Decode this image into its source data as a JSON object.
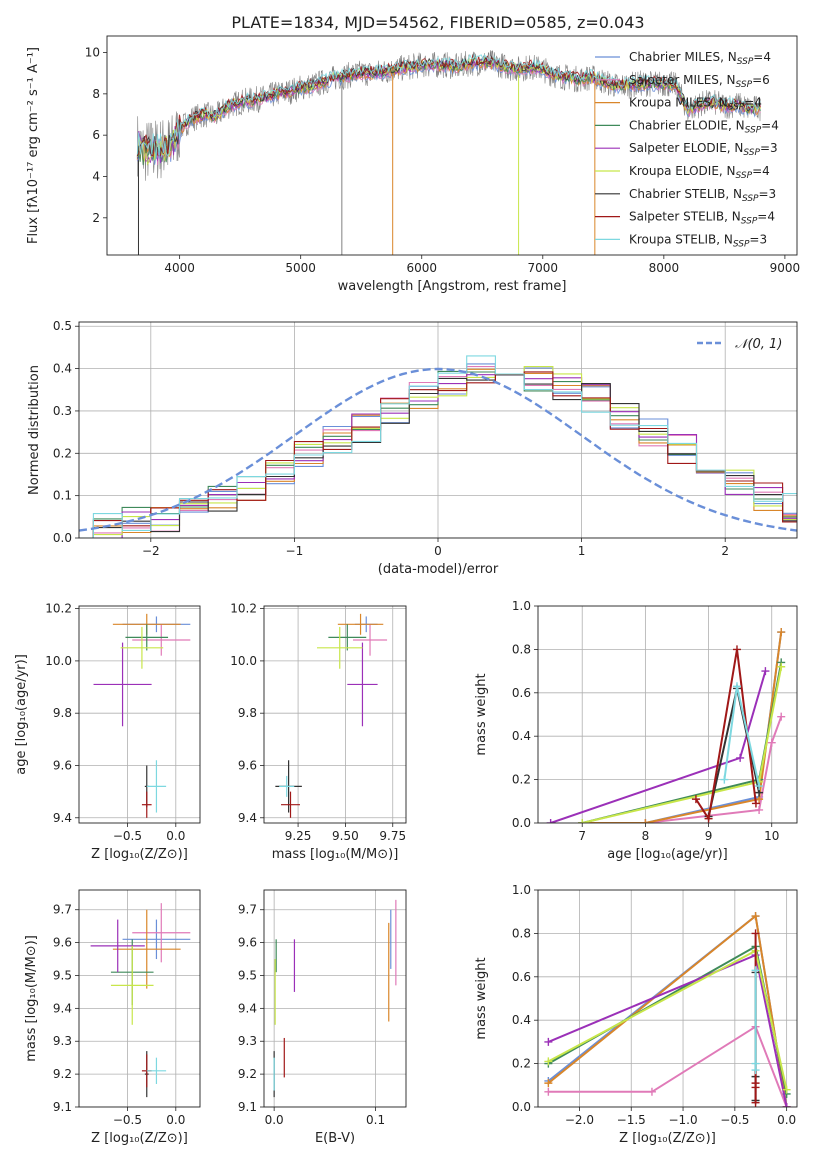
{
  "figure_title": "PLATE=1834, MJD=54562, FIBERID=0585, z=0.043",
  "colors": {
    "Chabrier MILES": "#6a8fd8",
    "Salpeter MILES": "#e07ab8",
    "Kroupa MILES": "#d9862a",
    "Chabrier ELODIE": "#3f8a5a",
    "Salpeter ELODIE": "#9b30b8",
    "Kroupa ELODIE": "#c8e64a",
    "Chabrier STELIB": "#333333",
    "Salpeter STELIB": "#a01818",
    "Kroupa STELIB": "#7dd8e0",
    "data": "#808080",
    "normal": "#6a8fd8"
  },
  "chart_data": [
    {
      "type": "line",
      "title": "PLATE=1834, MJD=54562, FIBERID=0585, z=0.043",
      "xlabel": "wavelength [Angstrom, rest frame]",
      "ylabel": "Flux [fλ10⁻¹⁷ erg cm⁻² s⁻¹ A⁻¹]",
      "xlim": [
        3400,
        9100
      ],
      "ylim": [
        0.2,
        10.8
      ],
      "xticks": [
        4000,
        5000,
        6000,
        7000,
        8000,
        9000
      ],
      "yticks": [
        2,
        4,
        6,
        8,
        10
      ],
      "legend_position": "top-right",
      "legend": [
        {
          "main": "Chabrier MILES, N",
          "sub": "SSP",
          "tail": "=4"
        },
        {
          "main": "Salpeter MILES, N",
          "sub": "SSP",
          "tail": "=6"
        },
        {
          "main": "Kroupa MILES, N",
          "sub": "SSP",
          "tail": "=4"
        },
        {
          "main": "Chabrier ELODIE, N",
          "sub": "SSP",
          "tail": "=4"
        },
        {
          "main": "Salpeter ELODIE, N",
          "sub": "SSP",
          "tail": "=3"
        },
        {
          "main": "Kroupa ELODIE, N",
          "sub": "SSP",
          "tail": "=4"
        },
        {
          "main": "Chabrier STELIB, N",
          "sub": "SSP",
          "tail": "=3"
        },
        {
          "main": "Salpeter STELIB, N",
          "sub": "SSP",
          "tail": "=4"
        },
        {
          "main": "Kroupa STELIB, N",
          "sub": "SSP",
          "tail": "=3"
        }
      ],
      "continuum": [
        [
          3650,
          5.6
        ],
        [
          3700,
          5.2
        ],
        [
          3800,
          5.3
        ],
        [
          3900,
          5.4
        ],
        [
          3950,
          5.6
        ],
        [
          4000,
          6.3
        ],
        [
          4100,
          6.8
        ],
        [
          4200,
          7.0
        ],
        [
          4300,
          6.9
        ],
        [
          4400,
          7.4
        ],
        [
          4500,
          7.6
        ],
        [
          4600,
          7.7
        ],
        [
          4700,
          7.8
        ],
        [
          4800,
          8.0
        ],
        [
          4900,
          8.1
        ],
        [
          5000,
          8.3
        ],
        [
          5100,
          8.4
        ],
        [
          5200,
          8.6
        ],
        [
          5300,
          8.8
        ],
        [
          5400,
          8.9
        ],
        [
          5500,
          9.0
        ],
        [
          5600,
          9.0
        ],
        [
          5700,
          9.1
        ],
        [
          5800,
          9.2
        ],
        [
          5900,
          9.3
        ],
        [
          6000,
          9.4
        ],
        [
          6100,
          9.4
        ],
        [
          6200,
          9.4
        ],
        [
          6300,
          9.3
        ],
        [
          6400,
          9.5
        ],
        [
          6500,
          9.5
        ],
        [
          6600,
          9.5
        ],
        [
          6700,
          9.3
        ],
        [
          6800,
          9.2
        ],
        [
          6900,
          9.3
        ],
        [
          7000,
          9.2
        ],
        [
          7100,
          8.9
        ],
        [
          7200,
          8.8
        ],
        [
          7300,
          8.7
        ],
        [
          7400,
          8.8
        ],
        [
          7500,
          8.6
        ],
        [
          7600,
          8.4
        ],
        [
          7700,
          8.4
        ],
        [
          7800,
          8.5
        ],
        [
          7900,
          8.5
        ],
        [
          8000,
          8.5
        ],
        [
          8100,
          8.4
        ],
        [
          8200,
          7.2
        ],
        [
          8300,
          7.5
        ],
        [
          8400,
          7.6
        ],
        [
          8500,
          7.4
        ],
        [
          8600,
          7.5
        ],
        [
          8700,
          7.3
        ],
        [
          8800,
          7.3
        ]
      ]
    },
    {
      "type": "line",
      "xlabel": "(data-model)/error",
      "ylabel": "Normed distribution",
      "xlim": [
        -2.5,
        2.5
      ],
      "ylim": [
        0,
        0.51
      ],
      "xticks": [
        -2,
        -1,
        0,
        1,
        2
      ],
      "yticks": [
        0.0,
        0.1,
        0.2,
        0.3,
        0.4,
        0.5
      ],
      "grid": true,
      "legend_position": "top-right",
      "legend_label": "𝒩(0, 1)",
      "bin_width": 0.2,
      "bin_start": -2.6,
      "histogram_heights": [
        0.02,
        0.025,
        0.04,
        0.05,
        0.06,
        0.09,
        0.12,
        0.16,
        0.2,
        0.23,
        0.26,
        0.3,
        0.34,
        0.37,
        0.4,
        0.39,
        0.38,
        0.36,
        0.33,
        0.29,
        0.25,
        0.21,
        0.17,
        0.13,
        0.1,
        0.07,
        0.05,
        0.04
      ]
    },
    {
      "type": "scatter",
      "xlabel": "Z [log₁₀(Z/Z⊙)]",
      "ylabel": "age  [log₁₀(age/yr)]",
      "xlim": [
        -1.0,
        0.25
      ],
      "ylim": [
        9.38,
        10.21
      ],
      "xticks": [
        -0.5,
        0.0
      ],
      "yticks": [
        9.4,
        9.6,
        9.8,
        10.0,
        10.2
      ],
      "grid": true,
      "points": [
        {
          "model": "Chabrier MILES",
          "x": -0.2,
          "y": 10.14,
          "xerr": 0.35,
          "yerr": 0.03
        },
        {
          "model": "Salpeter MILES",
          "x": -0.15,
          "y": 10.08,
          "xerr": 0.3,
          "yerr": 0.06
        },
        {
          "model": "Kroupa MILES",
          "x": -0.3,
          "y": 10.14,
          "xerr": 0.35,
          "yerr": 0.04
        },
        {
          "model": "Chabrier ELODIE",
          "x": -0.3,
          "y": 10.09,
          "xerr": 0.22,
          "yerr": 0.05
        },
        {
          "model": "Salpeter ELODIE",
          "x": -0.55,
          "y": 9.91,
          "xerr": 0.3,
          "yerr": 0.16
        },
        {
          "model": "Kroupa ELODIE",
          "x": -0.35,
          "y": 10.05,
          "xerr": 0.22,
          "yerr": 0.08
        },
        {
          "model": "Chabrier STELIB",
          "x": -0.3,
          "y": 9.52,
          "xerr": 0.02,
          "yerr": 0.08
        },
        {
          "model": "Salpeter STELIB",
          "x": -0.3,
          "y": 9.45,
          "xerr": 0.05,
          "yerr": 0.05
        },
        {
          "model": "Kroupa STELIB",
          "x": -0.2,
          "y": 9.52,
          "xerr": 0.1,
          "yerr": 0.1
        }
      ]
    },
    {
      "type": "scatter",
      "xlabel": "mass [log₁₀(M/M⊙)]",
      "xlim": [
        9.07,
        9.82
      ],
      "ylim": [
        9.38,
        10.21
      ],
      "xticks": [
        9.25,
        9.5,
        9.75
      ],
      "yticks": [
        9.4,
        9.6,
        9.8,
        10.0,
        10.2
      ],
      "grid": true,
      "points": [
        {
          "model": "Chabrier MILES",
          "x": 9.61,
          "y": 10.14,
          "xerr": 0.06,
          "yerr": 0.03
        },
        {
          "model": "Salpeter MILES",
          "x": 9.63,
          "y": 10.08,
          "xerr": 0.09,
          "yerr": 0.06
        },
        {
          "model": "Kroupa MILES",
          "x": 9.58,
          "y": 10.14,
          "xerr": 0.12,
          "yerr": 0.04
        },
        {
          "model": "Chabrier ELODIE",
          "x": 9.51,
          "y": 10.09,
          "xerr": 0.1,
          "yerr": 0.05
        },
        {
          "model": "Salpeter ELODIE",
          "x": 9.59,
          "y": 9.91,
          "xerr": 0.08,
          "yerr": 0.16
        },
        {
          "model": "Kroupa ELODIE",
          "x": 9.47,
          "y": 10.05,
          "xerr": 0.12,
          "yerr": 0.08
        },
        {
          "model": "Chabrier STELIB",
          "x": 9.2,
          "y": 9.52,
          "xerr": 0.07,
          "yerr": 0.1
        },
        {
          "model": "Salpeter STELIB",
          "x": 9.21,
          "y": 9.45,
          "xerr": 0.05,
          "yerr": 0.05
        },
        {
          "model": "Kroupa STELIB",
          "x": 9.19,
          "y": 9.52,
          "xerr": 0.04,
          "yerr": 0.04
        }
      ]
    },
    {
      "type": "line",
      "xlabel": "age  [log₁₀(age/yr)]",
      "ylabel": "mass weight",
      "xlim": [
        6.3,
        10.4
      ],
      "ylim": [
        0,
        1.0
      ],
      "xticks": [
        7,
        8,
        9,
        10
      ],
      "yticks": [
        0.0,
        0.2,
        0.4,
        0.6,
        0.8,
        1.0
      ],
      "grid": true,
      "series": [
        {
          "model": "Chabrier MILES",
          "x": [
            7.0,
            8.0,
            9.8,
            10.15
          ],
          "y": [
            0.0,
            0.0,
            0.12,
            0.88
          ]
        },
        {
          "model": "Salpeter MILES",
          "x": [
            7.0,
            8.0,
            9.8,
            10.0,
            10.15
          ],
          "y": [
            0.0,
            0.0,
            0.06,
            0.37,
            0.49
          ]
        },
        {
          "model": "Kroupa MILES",
          "x": [
            7.0,
            8.0,
            9.8,
            10.15
          ],
          "y": [
            0.0,
            0.0,
            0.11,
            0.88
          ]
        },
        {
          "model": "Chabrier ELODIE",
          "x": [
            7.0,
            9.8,
            10.15
          ],
          "y": [
            0.0,
            0.2,
            0.74
          ]
        },
        {
          "model": "Salpeter ELODIE",
          "x": [
            6.5,
            9.5,
            9.9
          ],
          "y": [
            0.0,
            0.3,
            0.7
          ]
        },
        {
          "model": "Kroupa ELODIE",
          "x": [
            7.0,
            9.8,
            10.15
          ],
          "y": [
            0.0,
            0.19,
            0.72
          ]
        },
        {
          "model": "Chabrier STELIB",
          "x": [
            9.0,
            9.45,
            9.8
          ],
          "y": [
            0.03,
            0.62,
            0.14
          ]
        },
        {
          "model": "Salpeter STELIB",
          "x": [
            8.8,
            9.0,
            9.45,
            9.75
          ],
          "y": [
            0.11,
            0.02,
            0.8,
            0.09
          ]
        },
        {
          "model": "Kroupa STELIB",
          "x": [
            9.25,
            9.45,
            9.8
          ],
          "y": [
            0.2,
            0.63,
            0.17
          ]
        }
      ]
    },
    {
      "type": "scatter",
      "xlabel": "Z [log₁₀(Z/Z⊙)]",
      "ylabel": "mass [log₁₀(M/M⊙)]",
      "xlim": [
        -1.0,
        0.25
      ],
      "ylim": [
        9.1,
        9.76
      ],
      "xticks": [
        -0.5,
        0.0
      ],
      "yticks": [
        9.1,
        9.2,
        9.3,
        9.4,
        9.5,
        9.6,
        9.7
      ],
      "grid": true,
      "points": [
        {
          "model": "Chabrier MILES",
          "x": -0.2,
          "y": 9.61,
          "xerr": 0.35,
          "yerr": 0.06
        },
        {
          "model": "Salpeter MILES",
          "x": -0.15,
          "y": 9.63,
          "xerr": 0.3,
          "yerr": 0.09
        },
        {
          "model": "Kroupa MILES",
          "x": -0.3,
          "y": 9.58,
          "xerr": 0.35,
          "yerr": 0.12
        },
        {
          "model": "Chabrier ELODIE",
          "x": -0.45,
          "y": 9.51,
          "xerr": 0.22,
          "yerr": 0.1
        },
        {
          "model": "Salpeter ELODIE",
          "x": -0.6,
          "y": 9.59,
          "xerr": 0.28,
          "yerr": 0.08
        },
        {
          "model": "Kroupa ELODIE",
          "x": -0.45,
          "y": 9.47,
          "xerr": 0.22,
          "yerr": 0.12
        },
        {
          "model": "Chabrier STELIB",
          "x": -0.3,
          "y": 9.2,
          "xerr": 0.02,
          "yerr": 0.07
        },
        {
          "model": "Salpeter STELIB",
          "x": -0.3,
          "y": 9.21,
          "xerr": 0.05,
          "yerr": 0.05
        },
        {
          "model": "Kroupa STELIB",
          "x": -0.2,
          "y": 9.21,
          "xerr": 0.1,
          "yerr": 0.04
        }
      ]
    },
    {
      "type": "scatter",
      "xlabel": "E(B-V)",
      "xlim": [
        -0.01,
        0.13
      ],
      "ylim": [
        9.1,
        9.76
      ],
      "xticks": [
        0.0,
        0.1
      ],
      "yticks": [
        9.1,
        9.2,
        9.3,
        9.4,
        9.5,
        9.6,
        9.7
      ],
      "grid": true,
      "points": [
        {
          "model": "Chabrier MILES",
          "x": 0.115,
          "y": 9.61,
          "yerr": 0.09
        },
        {
          "model": "Salpeter MILES",
          "x": 0.12,
          "y": 9.6,
          "yerr": 0.13
        },
        {
          "model": "Kroupa MILES",
          "x": 0.113,
          "y": 9.51,
          "yerr": 0.15
        },
        {
          "model": "Chabrier ELODIE",
          "x": 0.002,
          "y": 9.56,
          "yerr": 0.05
        },
        {
          "model": "Salpeter ELODIE",
          "x": 0.02,
          "y": 9.53,
          "yerr": 0.08
        },
        {
          "model": "Kroupa ELODIE",
          "x": 0.001,
          "y": 9.45,
          "yerr": 0.1
        },
        {
          "model": "Chabrier STELIB",
          "x": 0.0,
          "y": 9.2,
          "yerr": 0.07
        },
        {
          "model": "Salpeter STELIB",
          "x": 0.01,
          "y": 9.25,
          "yerr": 0.06
        },
        {
          "model": "Kroupa STELIB",
          "x": 0.0,
          "y": 9.2,
          "yerr": 0.05
        }
      ]
    },
    {
      "type": "line",
      "xlabel": "Z [log₁₀(Z/Z⊙)]",
      "ylabel": "mass weight",
      "xlim": [
        -2.4,
        0.1
      ],
      "ylim": [
        0,
        1.0
      ],
      "xticks": [
        -2.0,
        -1.5,
        -1.0,
        -0.5,
        0.0
      ],
      "yticks": [
        0.0,
        0.2,
        0.4,
        0.6,
        0.8,
        1.0
      ],
      "grid": true,
      "series": [
        {
          "model": "Chabrier MILES",
          "x": [
            -2.3,
            -0.3,
            0.0
          ],
          "y": [
            0.12,
            0.88,
            0.0
          ]
        },
        {
          "model": "Salpeter MILES",
          "x": [
            -2.3,
            -1.3,
            -0.3,
            0.0
          ],
          "y": [
            0.07,
            0.07,
            0.37,
            0.0
          ]
        },
        {
          "model": "Kroupa MILES",
          "x": [
            -2.3,
            -0.3,
            0.0
          ],
          "y": [
            0.11,
            0.88,
            0.0
          ]
        },
        {
          "model": "Chabrier ELODIE",
          "x": [
            -2.3,
            -0.3,
            0.0
          ],
          "y": [
            0.2,
            0.74,
            0.06
          ]
        },
        {
          "model": "Salpeter ELODIE",
          "x": [
            -2.3,
            -0.3,
            0.0
          ],
          "y": [
            0.3,
            0.7,
            0.0
          ]
        },
        {
          "model": "Kroupa ELODIE",
          "x": [
            -2.3,
            -0.3,
            0.0
          ],
          "y": [
            0.21,
            0.72,
            0.08
          ]
        },
        {
          "model": "Chabrier STELIB",
          "x": [
            -0.3,
            -0.3,
            -0.3
          ],
          "y": [
            0.03,
            0.62,
            0.14
          ]
        },
        {
          "model": "Salpeter STELIB",
          "x": [
            -0.3,
            -0.3,
            -0.3,
            -0.3
          ],
          "y": [
            0.02,
            0.11,
            0.8,
            0.09
          ]
        },
        {
          "model": "Kroupa STELIB",
          "x": [
            -0.3,
            -0.3,
            -0.3
          ],
          "y": [
            0.17,
            0.63,
            0.2
          ]
        }
      ]
    }
  ]
}
